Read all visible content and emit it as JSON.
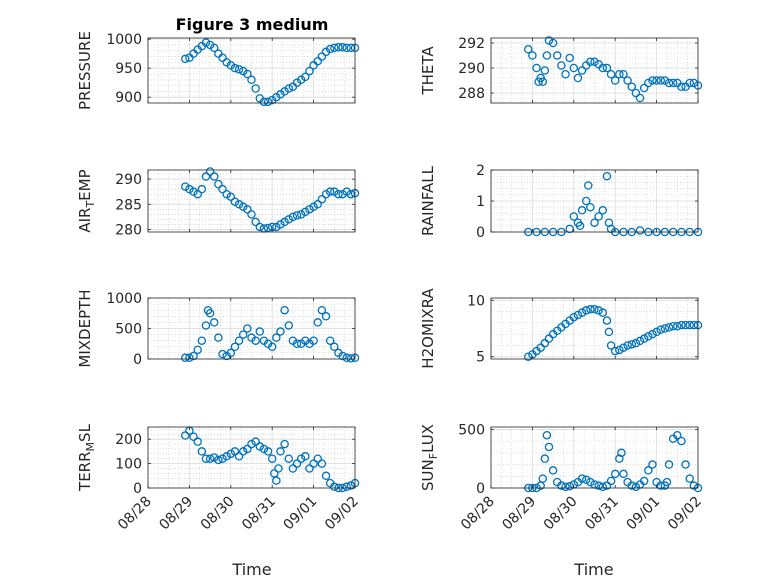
{
  "figure": {
    "title": "Figure 3 medium",
    "xlabel": "Time",
    "marker_color": "#0072bd",
    "grid": true
  },
  "chart_data": [
    {
      "type": "scatter",
      "ylabel": "PRESSURE",
      "ylim": [
        890,
        1002
      ],
      "yticks": [
        900,
        950,
        1000
      ],
      "xticks": [
        "08/28",
        "08/29",
        "08/30",
        "08/31",
        "09/01",
        "09/02"
      ],
      "x": [
        0.9,
        1.0,
        1.1,
        1.2,
        1.3,
        1.4,
        1.5,
        1.6,
        1.7,
        1.8,
        1.9,
        2.0,
        2.1,
        2.2,
        2.3,
        2.4,
        2.5,
        2.6,
        2.7,
        2.8,
        2.9,
        3.0,
        3.1,
        3.2,
        3.3,
        3.4,
        3.5,
        3.6,
        3.7,
        3.8,
        3.9,
        4.0,
        4.1,
        4.2,
        4.3,
        4.4,
        4.5,
        4.6,
        4.7,
        4.8,
        4.9,
        5.0
      ],
      "y": [
        966,
        968,
        975,
        982,
        988,
        994,
        990,
        985,
        975,
        968,
        960,
        955,
        950,
        948,
        945,
        940,
        930,
        915,
        898,
        892,
        892,
        895,
        900,
        905,
        910,
        915,
        918,
        925,
        930,
        935,
        945,
        955,
        962,
        970,
        978,
        983,
        985,
        986,
        986,
        985,
        985,
        985
      ]
    },
    {
      "type": "scatter",
      "ylabel": "THETA",
      "ylim": [
        287.2,
        292.4
      ],
      "yticks": [
        288,
        290,
        292
      ],
      "xticks": [
        "08/28",
        "08/29",
        "08/30",
        "08/31",
        "09/01",
        "09/02"
      ],
      "x": [
        0.9,
        1.0,
        1.1,
        1.15,
        1.2,
        1.25,
        1.3,
        1.35,
        1.4,
        1.5,
        1.6,
        1.7,
        1.8,
        1.9,
        2.0,
        2.1,
        2.2,
        2.3,
        2.4,
        2.5,
        2.6,
        2.7,
        2.8,
        2.9,
        3.0,
        3.1,
        3.2,
        3.3,
        3.4,
        3.5,
        3.6,
        3.7,
        3.8,
        3.9,
        4.0,
        4.1,
        4.2,
        4.3,
        4.4,
        4.5,
        4.6,
        4.7,
        4.8,
        4.9,
        5.0
      ],
      "y": [
        291.5,
        291.0,
        290.0,
        288.9,
        289.2,
        288.9,
        289.8,
        291.0,
        292.2,
        292.0,
        291.0,
        290.2,
        289.5,
        290.8,
        290.0,
        289.2,
        289.8,
        290.2,
        290.5,
        290.5,
        290.3,
        290.0,
        290.0,
        289.5,
        289.0,
        289.5,
        289.5,
        289.0,
        288.5,
        288.0,
        287.6,
        288.4,
        288.8,
        289.0,
        289.0,
        289.0,
        289.0,
        288.8,
        288.8,
        288.8,
        288.5,
        288.5,
        288.8,
        288.8,
        288.6
      ]
    },
    {
      "type": "scatter",
      "ylabel": "AIR",
      "ylabel_sub": "T",
      "ylabel_end": "EMP",
      "ylim": [
        279.5,
        291.8
      ],
      "yticks": [
        280,
        285,
        290
      ],
      "xticks": [
        "08/28",
        "08/29",
        "08/30",
        "08/31",
        "09/01",
        "09/02"
      ],
      "x": [
        0.9,
        1.0,
        1.1,
        1.2,
        1.3,
        1.4,
        1.5,
        1.6,
        1.7,
        1.8,
        1.9,
        2.0,
        2.1,
        2.2,
        2.3,
        2.4,
        2.5,
        2.6,
        2.7,
        2.8,
        2.9,
        3.0,
        3.1,
        3.2,
        3.3,
        3.4,
        3.5,
        3.6,
        3.7,
        3.8,
        3.9,
        4.0,
        4.1,
        4.2,
        4.3,
        4.4,
        4.5,
        4.6,
        4.7,
        4.8,
        4.9,
        5.0
      ],
      "y": [
        288.5,
        288.0,
        287.5,
        287.0,
        288.0,
        290.5,
        291.5,
        290.5,
        289.0,
        288.0,
        287.0,
        286.5,
        285.5,
        285.0,
        284.5,
        284.0,
        283.0,
        281.5,
        280.5,
        280.2,
        280.3,
        280.5,
        280.5,
        281.0,
        281.5,
        282.0,
        282.5,
        282.8,
        283.0,
        283.5,
        284.0,
        284.5,
        285.0,
        286.0,
        287.0,
        287.5,
        287.5,
        287.0,
        287.0,
        287.5,
        287.0,
        287.2
      ]
    },
    {
      "type": "scatter",
      "ylabel": "RAINFALL",
      "ylim": [
        0,
        2
      ],
      "yticks": [
        0,
        1,
        2
      ],
      "xticks": [
        "08/28",
        "08/29",
        "08/30",
        "08/31",
        "09/01",
        "09/02"
      ],
      "x": [
        0.9,
        1.1,
        1.3,
        1.5,
        1.7,
        1.9,
        2.0,
        2.1,
        2.15,
        2.2,
        2.3,
        2.35,
        2.4,
        2.5,
        2.6,
        2.7,
        2.8,
        2.85,
        2.9,
        3.0,
        3.2,
        3.4,
        3.6,
        3.8,
        4.0,
        4.2,
        4.4,
        4.6,
        4.8,
        5.0
      ],
      "y": [
        0,
        0,
        0,
        0,
        0,
        0.1,
        0.5,
        0.3,
        0.2,
        0.7,
        1.0,
        1.5,
        0.8,
        0.3,
        0.5,
        0.7,
        1.8,
        0.3,
        0.1,
        0,
        0,
        0,
        0.05,
        0,
        0,
        0,
        0,
        0,
        0,
        0
      ]
    },
    {
      "type": "scatter",
      "ylabel": "MIXDEPTH",
      "ylim": [
        0,
        1000
      ],
      "yticks": [
        0,
        500,
        1000
      ],
      "xticks": [
        "08/28",
        "08/29",
        "08/30",
        "08/31",
        "09/01",
        "09/02"
      ],
      "x": [
        0.9,
        1.0,
        1.1,
        1.2,
        1.3,
        1.4,
        1.45,
        1.5,
        1.6,
        1.7,
        1.8,
        1.9,
        2.0,
        2.1,
        2.2,
        2.3,
        2.4,
        2.5,
        2.6,
        2.7,
        2.8,
        2.9,
        3.0,
        3.1,
        3.2,
        3.3,
        3.4,
        3.5,
        3.6,
        3.7,
        3.8,
        3.9,
        4.0,
        4.1,
        4.2,
        4.3,
        4.4,
        4.5,
        4.6,
        4.7,
        4.8,
        4.9,
        5.0
      ],
      "y": [
        20,
        20,
        50,
        150,
        300,
        550,
        800,
        750,
        600,
        350,
        80,
        50,
        100,
        200,
        300,
        400,
        500,
        350,
        300,
        450,
        300,
        250,
        200,
        350,
        450,
        800,
        550,
        300,
        250,
        250,
        300,
        250,
        300,
        600,
        800,
        700,
        300,
        200,
        100,
        50,
        20,
        10,
        20
      ]
    },
    {
      "type": "scatter",
      "ylabel": "H2OMIXRA",
      "ylim": [
        4.8,
        10.2
      ],
      "yticks": [
        5,
        10
      ],
      "xticks": [
        "08/28",
        "08/29",
        "08/30",
        "08/31",
        "09/01",
        "09/02"
      ],
      "x": [
        0.9,
        1.0,
        1.1,
        1.2,
        1.3,
        1.4,
        1.5,
        1.6,
        1.7,
        1.8,
        1.9,
        2.0,
        2.1,
        2.2,
        2.3,
        2.4,
        2.5,
        2.6,
        2.7,
        2.8,
        2.85,
        2.9,
        3.0,
        3.1,
        3.2,
        3.3,
        3.4,
        3.5,
        3.6,
        3.7,
        3.8,
        3.9,
        4.0,
        4.1,
        4.2,
        4.3,
        4.4,
        4.5,
        4.6,
        4.7,
        4.8,
        4.9,
        5.0
      ],
      "y": [
        5.0,
        5.2,
        5.5,
        5.8,
        6.2,
        6.6,
        7.0,
        7.3,
        7.6,
        7.9,
        8.2,
        8.5,
        8.7,
        8.9,
        9.1,
        9.2,
        9.2,
        9.1,
        8.9,
        8.2,
        7.2,
        6.0,
        5.5,
        5.6,
        5.8,
        6.0,
        6.1,
        6.2,
        6.4,
        6.6,
        6.8,
        7.0,
        7.2,
        7.4,
        7.5,
        7.6,
        7.7,
        7.7,
        7.8,
        7.8,
        7.8,
        7.8,
        7.8
      ]
    },
    {
      "type": "scatter",
      "ylabel": "TERR",
      "ylabel_sub": "M",
      "ylabel_end": "SL",
      "ylim": [
        0,
        250
      ],
      "yticks": [
        0,
        100,
        200
      ],
      "xticks": [
        "08/28",
        "08/29",
        "08/30",
        "08/31",
        "09/01",
        "09/02"
      ],
      "x": [
        0.9,
        1.0,
        1.1,
        1.2,
        1.3,
        1.4,
        1.5,
        1.6,
        1.7,
        1.8,
        1.9,
        2.0,
        2.1,
        2.2,
        2.3,
        2.4,
        2.5,
        2.6,
        2.7,
        2.8,
        2.9,
        3.0,
        3.05,
        3.1,
        3.15,
        3.2,
        3.3,
        3.4,
        3.5,
        3.6,
        3.7,
        3.8,
        3.9,
        4.0,
        4.1,
        4.2,
        4.3,
        4.4,
        4.5,
        4.6,
        4.7,
        4.8,
        4.9,
        5.0
      ],
      "y": [
        215,
        235,
        210,
        190,
        150,
        120,
        120,
        125,
        115,
        120,
        130,
        140,
        150,
        130,
        150,
        160,
        180,
        190,
        170,
        160,
        150,
        120,
        60,
        30,
        80,
        150,
        180,
        120,
        80,
        100,
        120,
        130,
        80,
        100,
        120,
        100,
        50,
        20,
        5,
        0,
        0,
        5,
        10,
        20
      ]
    },
    {
      "type": "scatter",
      "ylabel": "SUN",
      "ylabel_sub": "F",
      "ylabel_end": "LUX",
      "ylim": [
        0,
        520
      ],
      "yticks": [
        0,
        500
      ],
      "xticks": [
        "08/28",
        "08/29",
        "08/30",
        "08/31",
        "09/01",
        "09/02"
      ],
      "x": [
        0.9,
        1.0,
        1.1,
        1.2,
        1.25,
        1.3,
        1.35,
        1.4,
        1.5,
        1.6,
        1.7,
        1.8,
        1.9,
        2.0,
        2.1,
        2.2,
        2.3,
        2.4,
        2.5,
        2.6,
        2.7,
        2.8,
        2.9,
        3.0,
        3.1,
        3.15,
        3.2,
        3.3,
        3.4,
        3.5,
        3.6,
        3.7,
        3.8,
        3.9,
        4.0,
        4.1,
        4.2,
        4.25,
        4.3,
        4.4,
        4.5,
        4.6,
        4.7,
        4.8,
        4.9,
        5.0
      ],
      "y": [
        0,
        0,
        0,
        20,
        80,
        250,
        450,
        350,
        150,
        50,
        20,
        10,
        15,
        30,
        50,
        80,
        70,
        50,
        30,
        20,
        10,
        20,
        60,
        120,
        250,
        300,
        120,
        50,
        20,
        10,
        30,
        60,
        150,
        200,
        50,
        20,
        20,
        50,
        200,
        420,
        450,
        400,
        200,
        80,
        20,
        0
      ]
    }
  ]
}
